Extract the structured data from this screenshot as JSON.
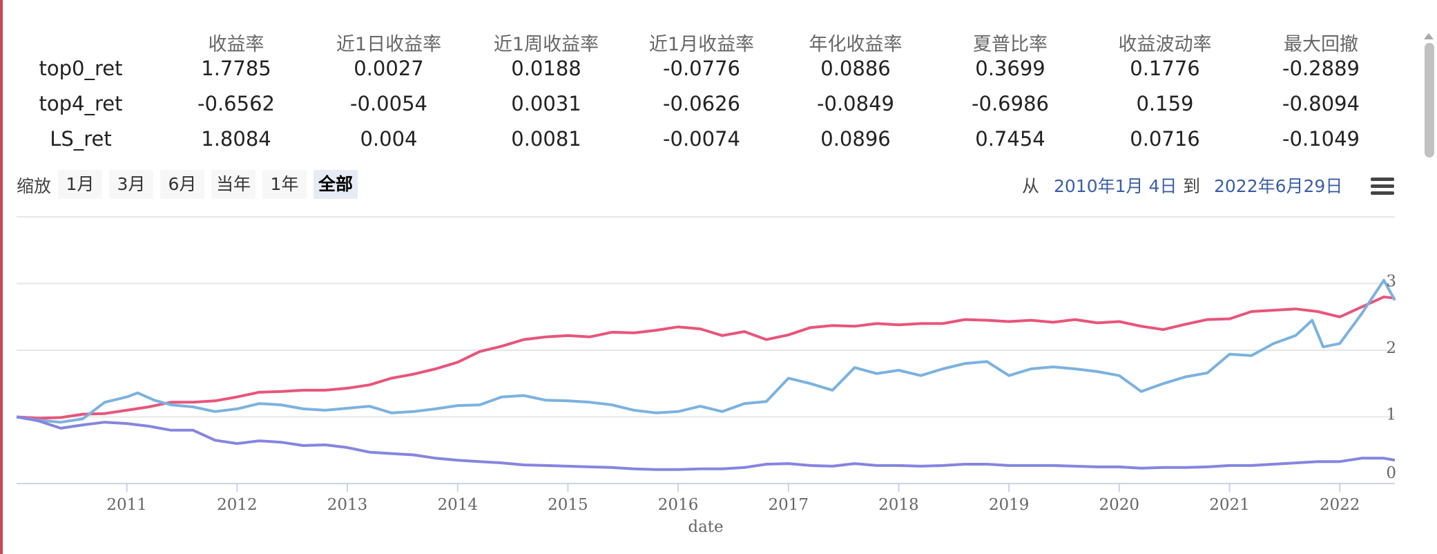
{
  "table": {
    "columns": [
      "收益率",
      "近1日收益率",
      "近1周收益率",
      "近1月收益率",
      "年化收益率",
      "夏普比率",
      "收益波动率",
      "最大回撤"
    ],
    "rows": [
      {
        "name": "top0_ret",
        "values": [
          "1.7785",
          "0.0027",
          "0.0188",
          "-0.0776",
          "0.0886",
          "0.3699",
          "0.1776",
          "-0.2889"
        ]
      },
      {
        "name": "top4_ret",
        "values": [
          "-0.6562",
          "-0.0054",
          "0.0031",
          "-0.0626",
          "-0.0849",
          "-0.6986",
          "0.159",
          "-0.8094"
        ]
      },
      {
        "name": "LS_ret",
        "values": [
          "1.8084",
          "0.004",
          "0.0081",
          "-0.0074",
          "0.0896",
          "0.7454",
          "0.0716",
          "-0.1049"
        ]
      }
    ]
  },
  "range_selector": {
    "zoom_label": "缩放",
    "buttons": [
      "1月",
      "3月",
      "6月",
      "当年",
      "1年",
      "全部"
    ],
    "active": "全部",
    "from_label": "从",
    "from_date": "2010年1月 4日",
    "to_label": "到",
    "to_date": "2022年6月29日"
  },
  "chart_data": {
    "type": "line",
    "xlabel": "date",
    "ylabel": "",
    "x_ticks": [
      "2011",
      "2012",
      "2013",
      "2014",
      "2015",
      "2016",
      "2017",
      "2018",
      "2019",
      "2020",
      "2021",
      "2022"
    ],
    "y_ticks": [
      "0",
      "1",
      "2",
      "3"
    ],
    "xlim": [
      2010.0,
      2022.5
    ],
    "ylim": [
      0,
      4
    ],
    "grid": true,
    "series": [
      {
        "color": "#e8557a",
        "points": [
          [
            2010.0,
            1.0
          ],
          [
            2010.2,
            0.98
          ],
          [
            2010.4,
            0.99
          ],
          [
            2010.6,
            1.04
          ],
          [
            2010.8,
            1.05
          ],
          [
            2011.0,
            1.1
          ],
          [
            2011.2,
            1.15
          ],
          [
            2011.4,
            1.22
          ],
          [
            2011.6,
            1.22
          ],
          [
            2011.8,
            1.24
          ],
          [
            2012.0,
            1.3
          ],
          [
            2012.2,
            1.37
          ],
          [
            2012.4,
            1.38
          ],
          [
            2012.6,
            1.4
          ],
          [
            2012.8,
            1.4
          ],
          [
            2013.0,
            1.43
          ],
          [
            2013.2,
            1.48
          ],
          [
            2013.4,
            1.58
          ],
          [
            2013.6,
            1.64
          ],
          [
            2013.8,
            1.72
          ],
          [
            2014.0,
            1.82
          ],
          [
            2014.2,
            1.98
          ],
          [
            2014.4,
            2.06
          ],
          [
            2014.6,
            2.16
          ],
          [
            2014.8,
            2.2
          ],
          [
            2015.0,
            2.22
          ],
          [
            2015.2,
            2.2
          ],
          [
            2015.4,
            2.27
          ],
          [
            2015.6,
            2.26
          ],
          [
            2015.8,
            2.3
          ],
          [
            2016.0,
            2.35
          ],
          [
            2016.2,
            2.32
          ],
          [
            2016.4,
            2.22
          ],
          [
            2016.6,
            2.28
          ],
          [
            2016.8,
            2.16
          ],
          [
            2017.0,
            2.23
          ],
          [
            2017.2,
            2.34
          ],
          [
            2017.4,
            2.37
          ],
          [
            2017.6,
            2.36
          ],
          [
            2017.8,
            2.4
          ],
          [
            2018.0,
            2.38
          ],
          [
            2018.2,
            2.4
          ],
          [
            2018.4,
            2.4
          ],
          [
            2018.6,
            2.46
          ],
          [
            2018.8,
            2.45
          ],
          [
            2019.0,
            2.43
          ],
          [
            2019.2,
            2.45
          ],
          [
            2019.4,
            2.42
          ],
          [
            2019.6,
            2.46
          ],
          [
            2019.8,
            2.41
          ],
          [
            2020.0,
            2.43
          ],
          [
            2020.2,
            2.36
          ],
          [
            2020.4,
            2.31
          ],
          [
            2020.6,
            2.39
          ],
          [
            2020.8,
            2.46
          ],
          [
            2021.0,
            2.47
          ],
          [
            2021.2,
            2.58
          ],
          [
            2021.4,
            2.6
          ],
          [
            2021.6,
            2.62
          ],
          [
            2021.8,
            2.58
          ],
          [
            2022.0,
            2.5
          ],
          [
            2022.2,
            2.65
          ],
          [
            2022.4,
            2.8
          ],
          [
            2022.5,
            2.78
          ]
        ]
      },
      {
        "color": "#7bb2e0",
        "points": [
          [
            2010.0,
            1.0
          ],
          [
            2010.2,
            0.95
          ],
          [
            2010.4,
            0.92
          ],
          [
            2010.6,
            0.97
          ],
          [
            2010.8,
            1.22
          ],
          [
            2011.0,
            1.3
          ],
          [
            2011.1,
            1.36
          ],
          [
            2011.25,
            1.25
          ],
          [
            2011.4,
            1.18
          ],
          [
            2011.6,
            1.15
          ],
          [
            2011.8,
            1.08
          ],
          [
            2012.0,
            1.12
          ],
          [
            2012.2,
            1.2
          ],
          [
            2012.4,
            1.18
          ],
          [
            2012.6,
            1.12
          ],
          [
            2012.8,
            1.1
          ],
          [
            2013.0,
            1.13
          ],
          [
            2013.2,
            1.16
          ],
          [
            2013.4,
            1.06
          ],
          [
            2013.6,
            1.08
          ],
          [
            2013.8,
            1.12
          ],
          [
            2014.0,
            1.17
          ],
          [
            2014.2,
            1.18
          ],
          [
            2014.4,
            1.3
          ],
          [
            2014.6,
            1.32
          ],
          [
            2014.8,
            1.25
          ],
          [
            2015.0,
            1.24
          ],
          [
            2015.2,
            1.22
          ],
          [
            2015.4,
            1.18
          ],
          [
            2015.6,
            1.1
          ],
          [
            2015.8,
            1.06
          ],
          [
            2016.0,
            1.08
          ],
          [
            2016.2,
            1.16
          ],
          [
            2016.4,
            1.08
          ],
          [
            2016.6,
            1.2
          ],
          [
            2016.8,
            1.23
          ],
          [
            2017.0,
            1.58
          ],
          [
            2017.2,
            1.5
          ],
          [
            2017.4,
            1.4
          ],
          [
            2017.6,
            1.74
          ],
          [
            2017.8,
            1.65
          ],
          [
            2018.0,
            1.7
          ],
          [
            2018.2,
            1.62
          ],
          [
            2018.4,
            1.72
          ],
          [
            2018.6,
            1.8
          ],
          [
            2018.8,
            1.83
          ],
          [
            2019.0,
            1.62
          ],
          [
            2019.2,
            1.72
          ],
          [
            2019.4,
            1.75
          ],
          [
            2019.6,
            1.72
          ],
          [
            2019.8,
            1.68
          ],
          [
            2020.0,
            1.62
          ],
          [
            2020.2,
            1.38
          ],
          [
            2020.4,
            1.5
          ],
          [
            2020.6,
            1.6
          ],
          [
            2020.8,
            1.66
          ],
          [
            2021.0,
            1.94
          ],
          [
            2021.2,
            1.92
          ],
          [
            2021.4,
            2.1
          ],
          [
            2021.6,
            2.22
          ],
          [
            2021.75,
            2.45
          ],
          [
            2021.85,
            2.05
          ],
          [
            2022.0,
            2.1
          ],
          [
            2022.2,
            2.55
          ],
          [
            2022.4,
            3.05
          ],
          [
            2022.5,
            2.75
          ]
        ]
      },
      {
        "color": "#8585e0",
        "points": [
          [
            2010.0,
            1.0
          ],
          [
            2010.2,
            0.94
          ],
          [
            2010.4,
            0.83
          ],
          [
            2010.6,
            0.88
          ],
          [
            2010.8,
            0.92
          ],
          [
            2011.0,
            0.9
          ],
          [
            2011.2,
            0.86
          ],
          [
            2011.4,
            0.8
          ],
          [
            2011.6,
            0.8
          ],
          [
            2011.8,
            0.65
          ],
          [
            2012.0,
            0.6
          ],
          [
            2012.2,
            0.64
          ],
          [
            2012.4,
            0.62
          ],
          [
            2012.6,
            0.57
          ],
          [
            2012.8,
            0.58
          ],
          [
            2013.0,
            0.54
          ],
          [
            2013.2,
            0.47
          ],
          [
            2013.4,
            0.45
          ],
          [
            2013.6,
            0.43
          ],
          [
            2013.8,
            0.38
          ],
          [
            2014.0,
            0.35
          ],
          [
            2014.2,
            0.33
          ],
          [
            2014.4,
            0.31
          ],
          [
            2014.6,
            0.28
          ],
          [
            2014.8,
            0.27
          ],
          [
            2015.0,
            0.26
          ],
          [
            2015.2,
            0.25
          ],
          [
            2015.4,
            0.24
          ],
          [
            2015.6,
            0.22
          ],
          [
            2015.8,
            0.21
          ],
          [
            2016.0,
            0.21
          ],
          [
            2016.2,
            0.22
          ],
          [
            2016.4,
            0.22
          ],
          [
            2016.6,
            0.24
          ],
          [
            2016.8,
            0.29
          ],
          [
            2017.0,
            0.3
          ],
          [
            2017.2,
            0.27
          ],
          [
            2017.4,
            0.26
          ],
          [
            2017.6,
            0.3
          ],
          [
            2017.8,
            0.27
          ],
          [
            2018.0,
            0.27
          ],
          [
            2018.2,
            0.26
          ],
          [
            2018.4,
            0.27
          ],
          [
            2018.6,
            0.29
          ],
          [
            2018.8,
            0.29
          ],
          [
            2019.0,
            0.27
          ],
          [
            2019.2,
            0.27
          ],
          [
            2019.4,
            0.27
          ],
          [
            2019.6,
            0.26
          ],
          [
            2019.8,
            0.25
          ],
          [
            2020.0,
            0.25
          ],
          [
            2020.2,
            0.23
          ],
          [
            2020.4,
            0.24
          ],
          [
            2020.6,
            0.24
          ],
          [
            2020.8,
            0.25
          ],
          [
            2021.0,
            0.27
          ],
          [
            2021.2,
            0.27
          ],
          [
            2021.4,
            0.29
          ],
          [
            2021.6,
            0.31
          ],
          [
            2021.8,
            0.33
          ],
          [
            2022.0,
            0.33
          ],
          [
            2022.2,
            0.38
          ],
          [
            2022.4,
            0.38
          ],
          [
            2022.5,
            0.35
          ]
        ]
      }
    ]
  }
}
